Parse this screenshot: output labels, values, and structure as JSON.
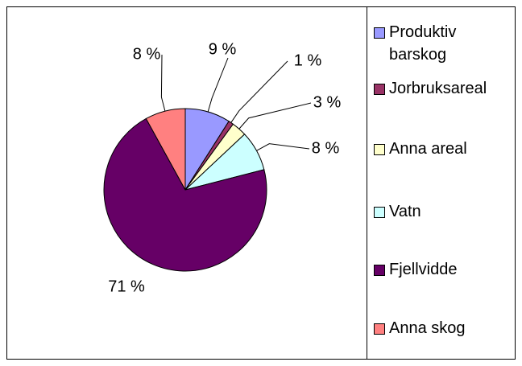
{
  "chart_data": {
    "type": "pie",
    "categories": [
      "Produktiv barskog",
      "Jorbruksareal",
      "Anna areal",
      "Vatn",
      "Fjellvidde",
      "Anna skog"
    ],
    "values": [
      9,
      1,
      3,
      8,
      71,
      8
    ],
    "value_labels": [
      "9 %",
      "1 %",
      "3 %",
      "8 %",
      "71 %",
      "8 %"
    ],
    "colors": [
      "#9999ff",
      "#993366",
      "#ffffcc",
      "#ccffff",
      "#660066",
      "#ff8080"
    ],
    "legend": "right"
  }
}
